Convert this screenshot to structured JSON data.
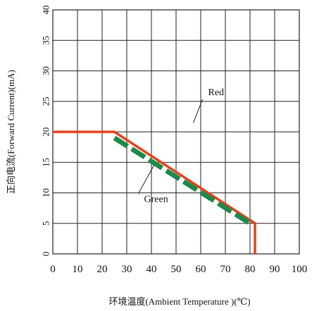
{
  "chart_data": {
    "type": "line",
    "xlabel": "环境温度(Ambient Temperature )(℃)",
    "ylabel": "正向电流(Forward Current)(mA)",
    "xlim": [
      0,
      100
    ],
    "ylim": [
      0,
      40
    ],
    "x_ticks": [
      "0",
      "10",
      "20",
      "30",
      "40",
      "50",
      "60",
      "70",
      "80",
      "90",
      "100"
    ],
    "y_ticks": [
      "0",
      "5",
      "10",
      "15",
      "20",
      "25",
      "30",
      "35",
      "40"
    ],
    "grid": true,
    "series": [
      {
        "name": "Red",
        "color": "#e8401c",
        "dashed": false,
        "points": [
          [
            0,
            20
          ],
          [
            25,
            20
          ],
          [
            82,
            5
          ],
          [
            82,
            0
          ]
        ]
      },
      {
        "name": "Green",
        "color": "#1d8a4c",
        "dashed": true,
        "points": [
          [
            25,
            19
          ],
          [
            80,
            5
          ]
        ]
      }
    ],
    "annotations": [
      {
        "text": "Red",
        "series": "Red",
        "x": 63,
        "y": 26,
        "pointer_to": [
          57,
          21.5
        ]
      },
      {
        "text": "Green",
        "series": "Green",
        "x": 37,
        "y": 8.5,
        "pointer_to": [
          41,
          14.5
        ]
      }
    ]
  }
}
